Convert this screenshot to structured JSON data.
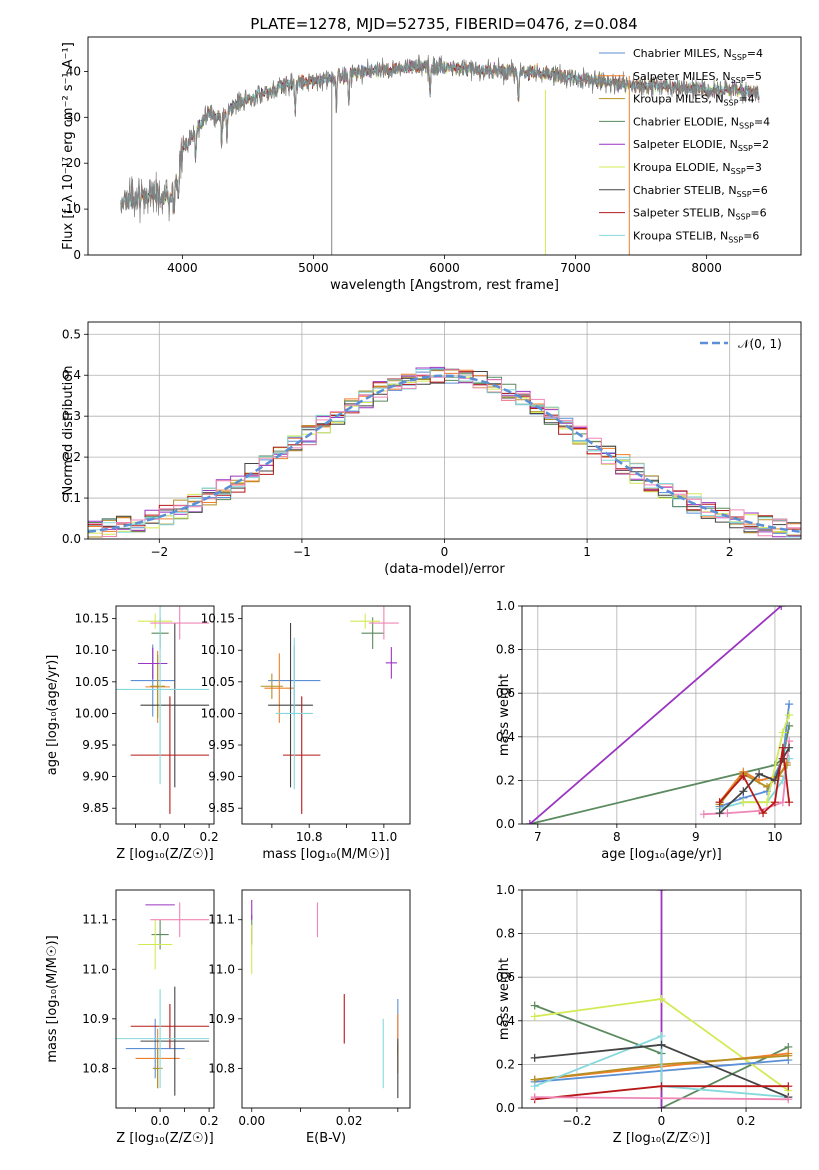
{
  "page_title": "PLATE=1278, MJD=52735, FIBERID=0476, z=0.084",
  "colors": {
    "c0": "#5b8fd6",
    "c1": "#f07f2a",
    "c2": "#b58f22",
    "c3": "#5a8a5e",
    "c4": "#9b34c1",
    "c5": "#d4ea55",
    "c6": "#444444",
    "c7": "#b71818",
    "c8": "#86d8dc",
    "c9": "#ef86b6",
    "gauss": "#5b8fd6"
  },
  "chart_data": [
    {
      "id": "spectrum",
      "type": "line",
      "title": "PLATE=1278, MJD=52735, FIBERID=0476, z=0.084",
      "xlabel": "wavelength [Angstrom, rest frame]",
      "ylabel": "Flux [f_λ 10^-17 erg cm^-2 s^-1 A^-1]",
      "xlim": [
        3280,
        8720
      ],
      "ylim": [
        0,
        47.5
      ],
      "xticks": [
        4000,
        5000,
        6000,
        7000,
        8000
      ],
      "yticks": [
        0,
        10,
        20,
        30,
        40
      ],
      "legend_position": "right",
      "legend": [
        {
          "label": "Chabrier MILES, N_SSP=4",
          "color": "c0"
        },
        {
          "label": "Salpeter MILES, N_SSP=5",
          "color": "c1"
        },
        {
          "label": "Kroupa MILES, N_SSP=4",
          "color": "c2"
        },
        {
          "label": "Chabrier ELODIE, N_SSP=4",
          "color": "c3"
        },
        {
          "label": "Salpeter ELODIE, N_SSP=2",
          "color": "c4"
        },
        {
          "label": "Kroupa ELODIE, N_SSP=3",
          "color": "c5"
        },
        {
          "label": "Chabrier STELIB, N_SSP=6",
          "color": "c6"
        },
        {
          "label": "Salpeter STELIB, N_SSP=6",
          "color": "c7"
        },
        {
          "label": "Kroupa STELIB, N_SSP=6",
          "color": "c8"
        }
      ],
      "continuum_wavelength": [
        3530,
        3700,
        3900,
        3960,
        4000,
        4100,
        4200,
        4300,
        4400,
        4600,
        4800,
        5000,
        5200,
        5400,
        5600,
        5800,
        6000,
        6200,
        6400,
        6600,
        6800,
        7000,
        7200,
        7400,
        7600,
        7800,
        8000,
        8200,
        8400
      ],
      "continuum_flux": [
        11,
        13,
        12,
        17,
        23,
        27,
        31,
        30,
        33,
        35,
        37,
        38,
        39,
        40,
        40.5,
        41,
        41,
        40.5,
        40,
        40,
        39.5,
        38.5,
        38,
        37,
        37,
        36.5,
        36,
        36,
        35.5
      ]
    },
    {
      "id": "residuals",
      "type": "step",
      "xlabel": "(data-model)/error",
      "ylabel": "Normed distribution",
      "xlim": [
        -2.5,
        2.5
      ],
      "ylim": [
        0,
        0.53
      ],
      "xticks": [
        -2,
        -1,
        0,
        1,
        2
      ],
      "yticks": [
        0.0,
        0.1,
        0.2,
        0.3,
        0.4,
        0.5
      ],
      "grid": true,
      "gauss_label": "𝒩(0, 1)",
      "legend_position": "top-right"
    },
    {
      "id": "age_vs_Z",
      "type": "errorbar",
      "xlabel": "Z [log10(Z/Z☉)]",
      "ylabel": "age [log10(age/yr)]",
      "xlim": [
        -0.18,
        0.22
      ],
      "ylim": [
        9.825,
        10.17
      ],
      "xticks": [
        -0.1,
        0.0,
        0.1,
        0.2
      ],
      "xticklabels": [
        "",
        "0.0",
        "",
        "0.2"
      ],
      "yticks": [
        9.85,
        9.9,
        9.95,
        10.0,
        10.05,
        10.1,
        10.15
      ],
      "points": [
        {
          "c": "c0",
          "x": -0.03,
          "xe": 0.09,
          "y": 10.052,
          "ye": 0.057
        },
        {
          "c": "c1",
          "x": -0.01,
          "xe": 0.05,
          "y": 10.042,
          "ye": 0.057
        },
        {
          "c": "c2",
          "x": -0.01,
          "xe": 0.03,
          "y": 10.043,
          "ye": 0.05
        },
        {
          "c": "c3",
          "x": 0.0,
          "xe": 0.035,
          "y": 10.127,
          "ye": 0.025
        },
        {
          "c": "c4",
          "x": -0.03,
          "xe": 0.06,
          "y": 10.079,
          "ye": 0.025
        },
        {
          "c": "c5",
          "x": -0.02,
          "xe": 0.07,
          "y": 10.146,
          "ye": 0.012
        },
        {
          "c": "c6",
          "x": 0.06,
          "xe": 0.14,
          "y": 10.013,
          "ye": 0.13
        },
        {
          "c": "c7",
          "x": 0.04,
          "xe": 0.16,
          "y": 9.934,
          "ye": 0.093
        },
        {
          "c": "c8",
          "x": 0.0,
          "xe": 0.2,
          "y": 10.038,
          "ye": 0.15
        },
        {
          "c": "c9",
          "x": 0.08,
          "xe": 0.12,
          "y": 10.143,
          "ye": 0.026
        }
      ]
    },
    {
      "id": "age_vs_mass",
      "type": "errorbar",
      "xlabel": "mass [log10(M/M☉)]",
      "ylabel": "",
      "xlim": [
        10.72,
        11.17
      ],
      "ylim": [
        9.825,
        10.17
      ],
      "xticks": [
        10.8,
        10.9,
        11.0,
        11.1
      ],
      "xticklabels": [
        "",
        "10.8",
        "",
        "11.0"
      ],
      "yticks": [
        9.85,
        9.9,
        9.95,
        10.0,
        10.05,
        10.1,
        10.15
      ],
      "points": [
        {
          "c": "c0",
          "x": 10.86,
          "xe": 0.07,
          "y": 10.052,
          "ye": 0.055
        },
        {
          "c": "c1",
          "x": 10.82,
          "xe": 0.04,
          "y": 10.04,
          "ye": 0.055
        },
        {
          "c": "c2",
          "x": 10.8,
          "xe": 0.03,
          "y": 10.043,
          "ye": 0.02
        },
        {
          "c": "c3",
          "x": 11.07,
          "xe": 0.03,
          "y": 10.127,
          "ye": 0.025
        },
        {
          "c": "c4",
          "x": 11.12,
          "xe": 0.015,
          "y": 10.08,
          "ye": 0.025
        },
        {
          "c": "c5",
          "x": 11.05,
          "xe": 0.04,
          "y": 10.146,
          "ye": 0.012
        },
        {
          "c": "c6",
          "x": 10.85,
          "xe": 0.06,
          "y": 10.013,
          "ye": 0.13
        },
        {
          "c": "c7",
          "x": 10.88,
          "xe": 0.05,
          "y": 9.934,
          "ye": 0.093
        },
        {
          "c": "c8",
          "x": 10.86,
          "xe": 0.05,
          "y": 10.0,
          "ye": 0.12
        },
        {
          "c": "c9",
          "x": 11.1,
          "xe": 0.04,
          "y": 10.143,
          "ye": 0.026
        }
      ]
    },
    {
      "id": "weight_vs_age",
      "type": "line",
      "xlabel": "age [log10(age/yr)]",
      "ylabel": "mass weight",
      "xlim": [
        6.8,
        10.33
      ],
      "ylim": [
        0,
        1.0
      ],
      "xticks": [
        7,
        8,
        9,
        10
      ],
      "yticks": [
        0.0,
        0.2,
        0.4,
        0.6,
        0.8,
        1.0
      ],
      "grid": true,
      "series": [
        {
          "c": "c3",
          "x": [
            6.9,
            10.0,
            10.1,
            10.18
          ],
          "y": [
            0.0,
            0.27,
            0.3,
            0.45
          ]
        },
        {
          "c": "c4",
          "x": [
            6.9,
            10.08
          ],
          "y": [
            0.0,
            1.0
          ]
        },
        {
          "c": "c9",
          "x": [
            9.1,
            9.4,
            9.8,
            10.1,
            10.18
          ],
          "y": [
            0.045,
            0.05,
            0.06,
            0.1,
            0.38
          ]
        },
        {
          "c": "c8",
          "x": [
            9.3,
            9.6,
            9.9,
            10.1,
            10.18
          ],
          "y": [
            0.07,
            0.1,
            0.1,
            0.2,
            0.3
          ]
        },
        {
          "c": "c0",
          "x": [
            9.3,
            9.6,
            9.9,
            10.1,
            10.18
          ],
          "y": [
            0.08,
            0.12,
            0.15,
            0.3,
            0.55
          ]
        },
        {
          "c": "c1",
          "x": [
            9.3,
            9.6,
            9.8,
            10.05,
            10.15
          ],
          "y": [
            0.1,
            0.24,
            0.2,
            0.22,
            0.28
          ]
        },
        {
          "c": "c2",
          "x": [
            9.3,
            9.6,
            9.9,
            10.05,
            10.15
          ],
          "y": [
            0.09,
            0.23,
            0.17,
            0.22,
            0.27
          ]
        },
        {
          "c": "c5",
          "x": [
            9.6,
            9.9,
            10.1,
            10.18
          ],
          "y": [
            0.1,
            0.1,
            0.42,
            0.5
          ]
        },
        {
          "c": "c6",
          "x": [
            9.3,
            9.6,
            9.8,
            10.0,
            10.1,
            10.18
          ],
          "y": [
            0.05,
            0.15,
            0.23,
            0.2,
            0.3,
            0.35
          ]
        },
        {
          "c": "c7",
          "x": [
            9.3,
            9.6,
            9.85,
            10.0,
            10.1,
            10.18
          ],
          "y": [
            0.1,
            0.22,
            0.05,
            0.1,
            0.35,
            0.1
          ]
        }
      ]
    },
    {
      "id": "mass_vs_Z",
      "type": "errorbar",
      "xlabel": "Z [log10(Z/Z☉)]",
      "ylabel": "mass [log10(M/M☉)]",
      "xlim": [
        -0.18,
        0.22
      ],
      "ylim": [
        10.72,
        11.16
      ],
      "xticks": [
        -0.1,
        0.0,
        0.1,
        0.2
      ],
      "xticklabels": [
        "",
        "0.0",
        "",
        "0.2"
      ],
      "yticks": [
        10.8,
        10.9,
        11.0,
        11.1
      ],
      "points": [
        {
          "c": "c0",
          "x": -0.02,
          "xe": 0.12,
          "y": 10.84,
          "ye": 0.06
        },
        {
          "c": "c1",
          "x": -0.01,
          "xe": 0.09,
          "y": 10.82,
          "ye": 0.06
        },
        {
          "c": "c2",
          "x": -0.01,
          "xe": 0.02,
          "y": 10.8,
          "ye": 0.04
        },
        {
          "c": "c3",
          "x": 0.0,
          "xe": 0.035,
          "y": 11.07,
          "ye": 0.03
        },
        {
          "c": "c4",
          "x": 0.0,
          "xe": 0.06,
          "y": 11.13,
          "ye": 0.0
        },
        {
          "c": "c5",
          "x": -0.02,
          "xe": 0.07,
          "y": 11.05,
          "ye": 0.05
        },
        {
          "c": "c6",
          "x": 0.06,
          "xe": 0.14,
          "y": 10.855,
          "ye": 0.11
        },
        {
          "c": "c7",
          "x": 0.04,
          "xe": 0.16,
          "y": 10.885,
          "ye": 0.045
        },
        {
          "c": "c8",
          "x": 0.0,
          "xe": 0.2,
          "y": 10.86,
          "ye": 0.1
        },
        {
          "c": "c9",
          "x": 0.08,
          "xe": 0.12,
          "y": 11.1,
          "ye": 0.035
        }
      ]
    },
    {
      "id": "mass_vs_EBV",
      "type": "errorbar",
      "xlabel": "E(B-V)",
      "ylabel": "",
      "xlim": [
        -0.002,
        0.0325
      ],
      "ylim": [
        10.72,
        11.16
      ],
      "xticks": [
        0.0,
        0.01,
        0.02,
        0.03
      ],
      "xticklabels": [
        "0.00",
        "",
        "0.02",
        ""
      ],
      "yticks": [
        10.8,
        10.9,
        11.0,
        11.1
      ],
      "points": [
        {
          "c": "c0",
          "x": 0.03,
          "xe": 0,
          "y": 10.9,
          "ye": 0.04
        },
        {
          "c": "c1",
          "x": 0.03,
          "xe": 0,
          "y": 10.87,
          "ye": 0.04
        },
        {
          "c": "c2",
          "x": 0.03,
          "xe": 0,
          "y": 10.82,
          "ye": 0.03
        },
        {
          "c": "c3",
          "x": 0.0,
          "xe": 0,
          "y": 11.08,
          "ye": 0.03
        },
        {
          "c": "c4",
          "x": 0.0,
          "xe": 0,
          "y": 11.12,
          "ye": 0.02
        },
        {
          "c": "c5",
          "x": 0.0,
          "xe": 0,
          "y": 11.04,
          "ye": 0.05
        },
        {
          "c": "c6",
          "x": 0.03,
          "xe": 0,
          "y": 10.8,
          "ye": 0.06
        },
        {
          "c": "c7",
          "x": 0.019,
          "xe": 0,
          "y": 10.9,
          "ye": 0.05
        },
        {
          "c": "c8",
          "x": 0.027,
          "xe": 0,
          "y": 10.83,
          "ye": 0.07
        },
        {
          "c": "c9",
          "x": 0.0135,
          "xe": 0,
          "y": 11.1,
          "ye": 0.035
        }
      ]
    },
    {
      "id": "weight_vs_Z",
      "type": "line",
      "xlabel": "Z [log10(Z/Z☉)]",
      "ylabel": "mass weight",
      "xlim": [
        -0.33,
        0.33
      ],
      "ylim": [
        0,
        1.0
      ],
      "xticks": [
        -0.2,
        0.0,
        0.2
      ],
      "yticks": [
        0.0,
        0.2,
        0.4,
        0.6,
        0.8,
        1.0
      ],
      "grid": true,
      "series": [
        {
          "c": "c3",
          "x": [
            -0.3,
            0.0,
            0.0,
            0.3
          ],
          "y": [
            0.47,
            0.25,
            0.0,
            0.28
          ]
        },
        {
          "c": "c4",
          "x": [
            0.0,
            0.0
          ],
          "y": [
            0.0,
            1.0
          ]
        },
        {
          "c": "c5",
          "x": [
            -0.3,
            0.0,
            0.3
          ],
          "y": [
            0.42,
            0.5,
            0.08
          ]
        },
        {
          "c": "c0",
          "x": [
            -0.3,
            0.0,
            0.3
          ],
          "y": [
            0.12,
            0.17,
            0.22
          ]
        },
        {
          "c": "c1",
          "x": [
            -0.3,
            0.0,
            0.3
          ],
          "y": [
            0.13,
            0.19,
            0.25
          ]
        },
        {
          "c": "c2",
          "x": [
            -0.3,
            0.0,
            0.3
          ],
          "y": [
            0.13,
            0.2,
            0.24
          ]
        },
        {
          "c": "c8",
          "x": [
            -0.3,
            0.0,
            0.0,
            0.3
          ],
          "y": [
            0.1,
            0.33,
            0.1,
            0.05
          ]
        },
        {
          "c": "c6",
          "x": [
            -0.3,
            0.0,
            0.3
          ],
          "y": [
            0.23,
            0.29,
            0.05
          ]
        },
        {
          "c": "c7",
          "x": [
            -0.3,
            0.0,
            0.3
          ],
          "y": [
            0.04,
            0.1,
            0.1
          ]
        },
        {
          "c": "c9",
          "x": [
            -0.3,
            0.3
          ],
          "y": [
            0.05,
            0.04
          ]
        }
      ]
    }
  ]
}
